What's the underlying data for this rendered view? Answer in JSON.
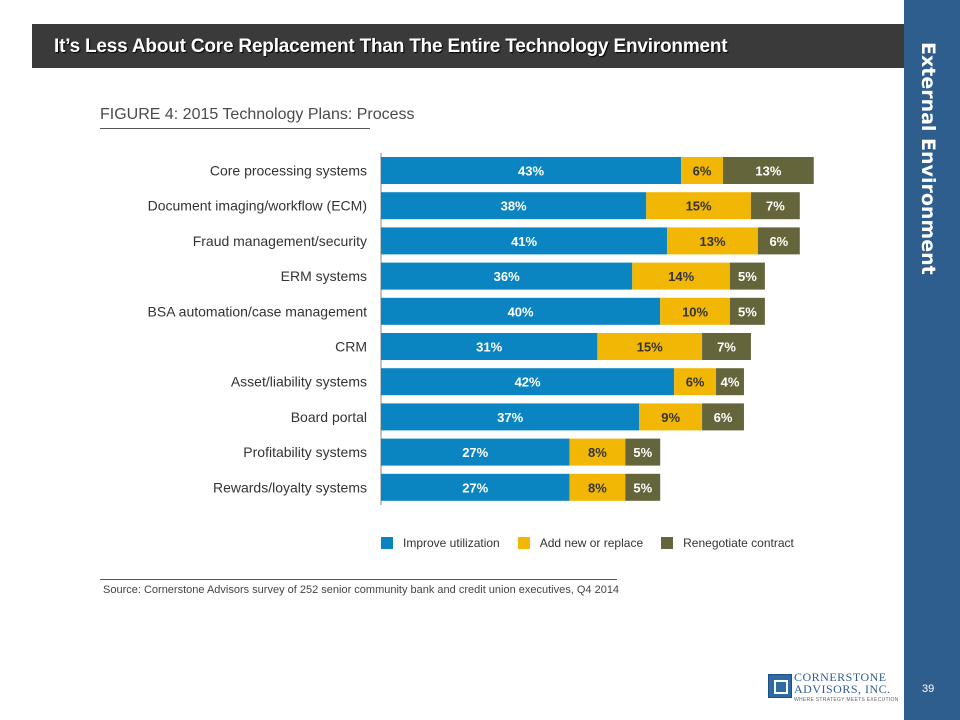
{
  "slide": {
    "title": "It’s Less About Core Replacement Than The Entire Technology Environment",
    "section": "External Environment",
    "page_number": "39",
    "source": "Source: Cornerstone Advisors survey of 252 senior community bank and credit union executives, Q4 2014",
    "logo": {
      "line1": "CORNERSTONE",
      "line2": "ADVISORS, INC.",
      "tagline": "WHERE STRATEGY MEETS EXECUTION"
    }
  },
  "colors": {
    "improve": "#0a85c1",
    "add": "#f2b705",
    "renegotiate": "#65653b"
  },
  "chart_data": {
    "type": "bar",
    "orientation": "horizontal",
    "stacked": true,
    "title": "FIGURE 4: 2015 Technology Plans: Process",
    "categories": [
      "Core processing systems",
      "Document imaging/workflow (ECM)",
      "Fraud management/security",
      "ERM systems",
      "BSA automation/case management",
      "CRM",
      "Asset/liability systems",
      "Board portal",
      "Profitability systems",
      "Rewards/loyalty systems"
    ],
    "series": [
      {
        "name": "Improve utilization",
        "values": [
          43,
          38,
          41,
          36,
          40,
          31,
          42,
          37,
          27,
          27
        ]
      },
      {
        "name": "Add new or replace",
        "values": [
          6,
          15,
          13,
          14,
          10,
          15,
          6,
          9,
          8,
          8
        ]
      },
      {
        "name": "Renegotiate contract",
        "values": [
          13,
          7,
          6,
          5,
          5,
          7,
          4,
          6,
          5,
          5
        ]
      }
    ],
    "value_suffix": "%",
    "legend_position": "bottom",
    "grid": false
  }
}
